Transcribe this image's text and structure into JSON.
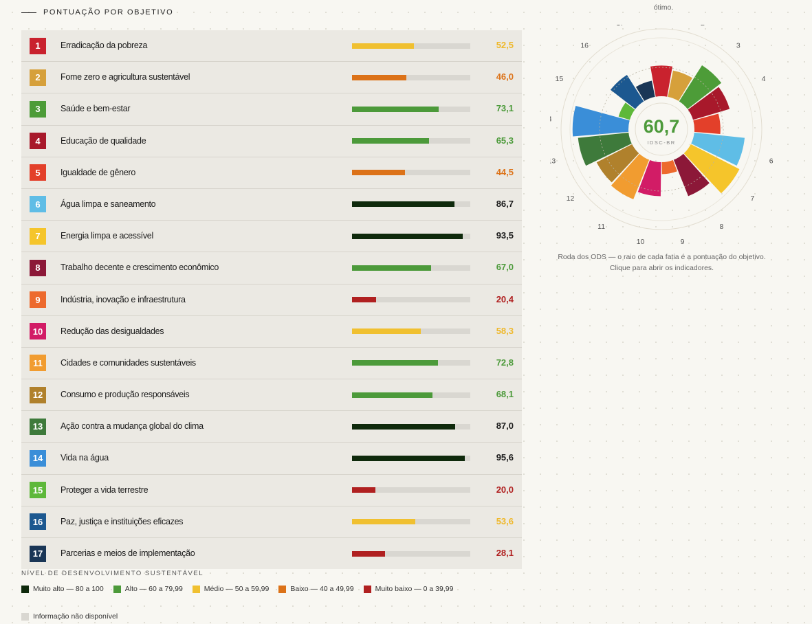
{
  "section": {
    "title": "PONTUAÇÃO POR OBJETIVO"
  },
  "top_note": "ótimo.",
  "goals": [
    {
      "n": "1",
      "label": "Erradicação da pobreza",
      "score": "52,5",
      "value": 52.5,
      "goal_color": "#c9222e",
      "level": "medio"
    },
    {
      "n": "2",
      "label": "Fome zero e agricultura sustentável",
      "score": "46,0",
      "value": 46.0,
      "goal_color": "#d6a03b",
      "level": "baixo"
    },
    {
      "n": "3",
      "label": "Saúde e bem-estar",
      "score": "73,1",
      "value": 73.1,
      "goal_color": "#4d9c38",
      "level": "alto"
    },
    {
      "n": "4",
      "label": "Educação de qualidade",
      "score": "65,3",
      "value": 65.3,
      "goal_color": "#a8192b",
      "level": "alto"
    },
    {
      "n": "5",
      "label": "Igualdade de gênero",
      "score": "44,5",
      "value": 44.5,
      "goal_color": "#e3402a",
      "level": "baixo"
    },
    {
      "n": "6",
      "label": "Água limpa e saneamento",
      "score": "86,7",
      "value": 86.7,
      "goal_color": "#5fbde6",
      "level": "muito_alto"
    },
    {
      "n": "7",
      "label": "Energia limpa e acessível",
      "score": "93,5",
      "value": 93.5,
      "goal_color": "#f5c52b",
      "level": "muito_alto"
    },
    {
      "n": "8",
      "label": "Trabalho decente e crescimento econômico",
      "score": "67,0",
      "value": 67.0,
      "goal_color": "#8c1838",
      "level": "alto"
    },
    {
      "n": "9",
      "label": "Indústria, inovação e infraestrutura",
      "score": "20,4",
      "value": 20.4,
      "goal_color": "#ed6a2d",
      "level": "muito_baixo"
    },
    {
      "n": "10",
      "label": "Redução das desigualdades",
      "score": "58,3",
      "value": 58.3,
      "goal_color": "#d21c66",
      "level": "medio"
    },
    {
      "n": "11",
      "label": "Cidades e comunidades sustentáveis",
      "score": "72,8",
      "value": 72.8,
      "goal_color": "#f19c30",
      "level": "alto"
    },
    {
      "n": "12",
      "label": "Consumo e produção responsáveis",
      "score": "68,1",
      "value": 68.1,
      "goal_color": "#b0812c",
      "level": "alto"
    },
    {
      "n": "13",
      "label": "Ação contra a mudança global do clima",
      "score": "87,0",
      "value": 87.0,
      "goal_color": "#3e7a3b",
      "level": "muito_alto"
    },
    {
      "n": "14",
      "label": "Vida na água",
      "score": "95,6",
      "value": 95.6,
      "goal_color": "#3a8ed8",
      "level": "muito_alto"
    },
    {
      "n": "15",
      "label": "Proteger a vida terrestre",
      "score": "20,0",
      "value": 20.0,
      "goal_color": "#5eb83a",
      "level": "muito_baixo"
    },
    {
      "n": "16",
      "label": "Paz, justiça e instituições eficazes",
      "score": "53,6",
      "value": 53.6,
      "goal_color": "#1c5890",
      "level": "medio"
    },
    {
      "n": "17",
      "label": "Parcerias e meios de implementação",
      "score": "28,1",
      "value": 28.1,
      "goal_color": "#1a3656",
      "level": "muito_baixo"
    }
  ],
  "level_colors": {
    "muito_alto": {
      "bar": "#0f2a0c",
      "text": "#1a1a1a"
    },
    "alto": {
      "bar": "#4c9a3a",
      "text": "#4c9a3a"
    },
    "medio": {
      "bar": "#f0c030",
      "text": "#efb82a"
    },
    "baixo": {
      "bar": "#dc7218",
      "text": "#dc7218"
    },
    "muito_baixo": {
      "bar": "#b02020",
      "text": "#b02020"
    }
  },
  "wheel": {
    "score": "60,7",
    "score_label": "IDSC-BR",
    "score_color": "#4d9a3b",
    "caption_line1": "Roda dos ODS — o raio de cada fatia é a pontuação do objetivo.",
    "caption_line2": "Clique para abrir os indicadores."
  },
  "legend": {
    "title": "NÍVEL DE DESENVOLVIMENTO SUSTENTÁVEL",
    "items": [
      {
        "label": "Muito alto — 80 a 100",
        "color": "#0f2a0c"
      },
      {
        "label": "Alto — 60 a 79,99",
        "color": "#4c9a3a"
      },
      {
        "label": "Médio — 50 a 59,99",
        "color": "#f0c030"
      },
      {
        "label": "Baixo — 40 a 49,99",
        "color": "#dc7218"
      },
      {
        "label": "Muito baixo — 0 a 39,99",
        "color": "#b02020"
      },
      {
        "label": "Informação não disponível",
        "color": "#d9d7d1"
      }
    ]
  }
}
